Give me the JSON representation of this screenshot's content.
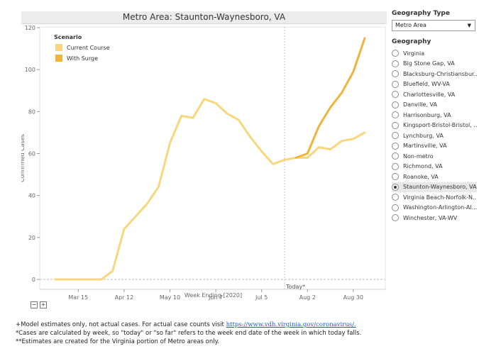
{
  "chart_data": {
    "type": "line",
    "title": "Metro Area: Staunton-Waynesboro, VA",
    "xlabel": "Week Ending [2020]",
    "ylabel": "Confirmed Cases",
    "ylim": [
      0,
      120
    ],
    "yticks": [
      0,
      20,
      40,
      60,
      80,
      100,
      120
    ],
    "x_ticks": [
      "2020-03-15",
      "2020-04-12",
      "2020-05-10",
      "2020-06-07",
      "2020-07-05",
      "2020-08-02",
      "2020-08-30"
    ],
    "x_tick_labels": [
      "Mar 15",
      "Apr 12",
      "May 10",
      "Jun 7",
      "Jul 5",
      "Aug 2",
      "Aug 30"
    ],
    "xlim": [
      "2020-03-01",
      "2020-09-06"
    ],
    "today": "2020-07-19",
    "today_label": "Today*",
    "legend": {
      "title": "Scenario",
      "placement": "top-left"
    },
    "grid": false,
    "series": [
      {
        "name": "Current Course",
        "color": "#f8d77c",
        "x": [
          "2020-03-01",
          "2020-03-08",
          "2020-03-15",
          "2020-03-22",
          "2020-03-29",
          "2020-04-05",
          "2020-04-12",
          "2020-04-19",
          "2020-04-26",
          "2020-05-03",
          "2020-05-10",
          "2020-05-17",
          "2020-05-24",
          "2020-05-31",
          "2020-06-07",
          "2020-06-14",
          "2020-06-21",
          "2020-06-28",
          "2020-07-05",
          "2020-07-12",
          "2020-07-19",
          "2020-07-26",
          "2020-08-02",
          "2020-08-09",
          "2020-08-16",
          "2020-08-23",
          "2020-08-30",
          "2020-09-06"
        ],
        "values": [
          0,
          0,
          0,
          0,
          0,
          4,
          24,
          30,
          36,
          44,
          65,
          78,
          77,
          86,
          84,
          79,
          76,
          68,
          61,
          55,
          57,
          58,
          58,
          63,
          62,
          66,
          67,
          70
        ]
      },
      {
        "name": "With Surge",
        "color": "#f0b43c",
        "x": [
          "2020-07-26",
          "2020-08-02",
          "2020-08-09",
          "2020-08-16",
          "2020-08-23",
          "2020-08-30",
          "2020-09-06"
        ],
        "values": [
          58,
          60,
          73,
          82,
          89,
          99,
          115
        ]
      }
    ]
  },
  "panel": {
    "geography_type_heading": "Geography Type",
    "geography_type_value": "Metro Area",
    "geography_heading": "Geography",
    "items": [
      "Virginia",
      "Big Stone Gap, VA",
      "Blacksburg-Christiansbur...",
      "Bluefield, WV-VA",
      "Charlottesville, VA",
      "Danville, VA",
      "Harrisonburg, VA",
      "Kingsport-Bristol-Bristol, ...",
      "Lynchburg, VA",
      "Martinsville, VA",
      "Non-metro",
      "Richmond, VA",
      "Roanoke, VA",
      "Staunton-Waynesboro, VA",
      "Virginia Beach-Norfolk-N...",
      "Washington-Arlington-Al...",
      "Winchester, VA-WV"
    ],
    "selected_index": 13
  },
  "zoom": {
    "minus": "−",
    "plus": "+"
  },
  "footnotes": {
    "line1_prefix": "+Model estimates only, not actual cases. For actual case counts visit ",
    "line1_link": "https://www.vdh.virginia.gov/coronavirus/.",
    "line2": "*Cases are calculated by week, so \"today\" or \"so far\" refers to the week end date of the week in which today falls.",
    "line3": "**Estimates are created for the Virginia portion of Metro areas only."
  }
}
